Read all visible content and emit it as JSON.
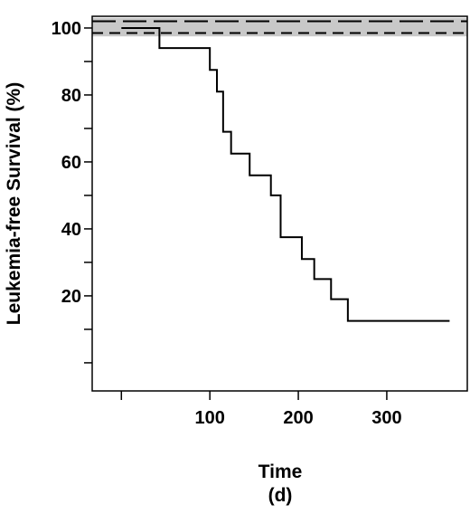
{
  "chart_data": {
    "type": "step",
    "ylabel": "Leukemia-free Survival (%)",
    "xlabel": [
      "Time",
      "(d)"
    ],
    "xlim": [
      -33,
      391
    ],
    "ylim": [
      -8.4,
      103.5
    ],
    "xticks": [
      100,
      200,
      300
    ],
    "xticks_minor": [
      0
    ],
    "yticks": [
      20,
      40,
      60,
      80,
      100
    ],
    "yticks_minor": [
      0,
      10,
      30,
      50,
      70,
      90
    ],
    "band": [
      97.5,
      103
    ],
    "reference": [
      {
        "x": [
          -33,
          391
        ],
        "values": [
          102,
          102
        ],
        "color": "#000000",
        "dash": "long"
      },
      {
        "x": [
          -33,
          391
        ],
        "values": [
          98.5,
          98.5
        ],
        "color": "#000000",
        "dash": "short"
      }
    ],
    "series": [
      {
        "x": [
          0,
          43,
          100,
          108,
          115,
          124,
          145,
          169,
          180,
          204,
          218,
          237,
          256,
          371
        ],
        "values": [
          100,
          94,
          87.5,
          81,
          69,
          62.5,
          56,
          50,
          37.5,
          31,
          25,
          19,
          12.5,
          12.5
        ],
        "color": "#000000"
      }
    ]
  }
}
